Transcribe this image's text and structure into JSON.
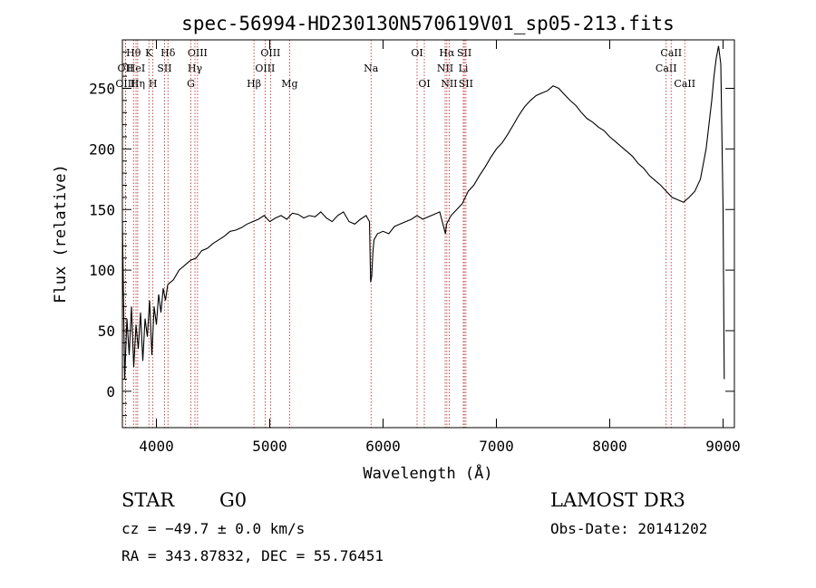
{
  "chart_data": {
    "type": "line",
    "title": "spec-56994-HD230130N570619V01_sp05-213.fits",
    "xlabel": "Wavelength (Å)",
    "ylabel": "Flux (relative)",
    "xlim": [
      3700,
      9100
    ],
    "ylim": [
      -30,
      290
    ],
    "x_ticks": [
      4000,
      5000,
      6000,
      7000,
      8000,
      9000
    ],
    "y_ticks": [
      0,
      50,
      100,
      150,
      200,
      250
    ],
    "line_color": "#000000",
    "marker_color": "#b22222",
    "series": [
      {
        "name": "flux",
        "x": [
          3700,
          3720,
          3740,
          3760,
          3780,
          3800,
          3820,
          3840,
          3860,
          3880,
          3900,
          3920,
          3940,
          3960,
          3980,
          4000,
          4020,
          4040,
          4060,
          4080,
          4100,
          4150,
          4200,
          4250,
          4300,
          4350,
          4400,
          4450,
          4500,
          4550,
          4600,
          4650,
          4700,
          4750,
          4800,
          4850,
          4900,
          4950,
          5000,
          5050,
          5100,
          5150,
          5200,
          5250,
          5300,
          5350,
          5400,
          5450,
          5500,
          5550,
          5600,
          5650,
          5700,
          5750,
          5800,
          5850,
          5880,
          5890,
          5900,
          5910,
          5920,
          5950,
          6000,
          6050,
          6100,
          6150,
          6200,
          6250,
          6300,
          6350,
          6400,
          6450,
          6500,
          6550,
          6560,
          6600,
          6650,
          6700,
          6750,
          6800,
          6850,
          6900,
          6950,
          7000,
          7050,
          7100,
          7150,
          7200,
          7250,
          7300,
          7350,
          7400,
          7450,
          7500,
          7550,
          7600,
          7650,
          7700,
          7750,
          7800,
          7850,
          7900,
          7950,
          8000,
          8050,
          8100,
          8150,
          8200,
          8250,
          8300,
          8350,
          8400,
          8450,
          8500,
          8550,
          8600,
          8650,
          8700,
          8750,
          8800,
          8850,
          8900,
          8920,
          8940,
          8960,
          8980,
          9000,
          9010
        ],
        "y": [
          140,
          10,
          60,
          30,
          70,
          20,
          55,
          35,
          65,
          25,
          60,
          45,
          75,
          30,
          70,
          55,
          80,
          65,
          85,
          75,
          88,
          92,
          100,
          104,
          108,
          110,
          116,
          118,
          122,
          125,
          128,
          132,
          133,
          135,
          138,
          140,
          142,
          145,
          140,
          143,
          145,
          142,
          147,
          146,
          143,
          145,
          144,
          148,
          143,
          140,
          145,
          148,
          140,
          138,
          142,
          145,
          140,
          90,
          95,
          115,
          125,
          130,
          132,
          130,
          136,
          138,
          140,
          142,
          145,
          142,
          144,
          146,
          148,
          130,
          138,
          145,
          150,
          155,
          165,
          170,
          178,
          185,
          193,
          200,
          205,
          212,
          220,
          228,
          235,
          240,
          244,
          246,
          248,
          252,
          250,
          245,
          240,
          236,
          230,
          225,
          222,
          218,
          215,
          210,
          206,
          202,
          198,
          194,
          188,
          184,
          178,
          174,
          170,
          165,
          160,
          158,
          156,
          160,
          165,
          175,
          200,
          240,
          260,
          275,
          285,
          270,
          150,
          10
        ]
      }
    ],
    "line_markers": [
      {
        "label": "Hθ",
        "x": 3798,
        "row": 1
      },
      {
        "label": "OII",
        "x": 3727,
        "row": 2
      },
      {
        "label": "OIII",
        "x": 3727,
        "row": 3
      },
      {
        "label": "HeI",
        "x": 3820,
        "row": 2
      },
      {
        "label": "Hη",
        "x": 3835,
        "row": 3
      },
      {
        "label": "K",
        "x": 3934,
        "row": 1
      },
      {
        "label": "H",
        "x": 3969,
        "row": 3
      },
      {
        "label": "SII",
        "x": 4072,
        "row": 2
      },
      {
        "label": "Hδ",
        "x": 4102,
        "row": 1
      },
      {
        "label": "OIII",
        "x": 4363,
        "row": 1
      },
      {
        "label": "Hγ",
        "x": 4340,
        "row": 2
      },
      {
        "label": "G",
        "x": 4304,
        "row": 3
      },
      {
        "label": "Hβ",
        "x": 4861,
        "row": 3
      },
      {
        "label": "OIII",
        "x": 4959,
        "row": 2
      },
      {
        "label": "OIII",
        "x": 5007,
        "row": 1
      },
      {
        "label": "Mg",
        "x": 5175,
        "row": 3
      },
      {
        "label": "Na",
        "x": 5894,
        "row": 2
      },
      {
        "label": "OI",
        "x": 6300,
        "row": 1
      },
      {
        "label": "OI",
        "x": 6364,
        "row": 3
      },
      {
        "label": "NII",
        "x": 6548,
        "row": 2
      },
      {
        "label": "Hα",
        "x": 6563,
        "row": 1
      },
      {
        "label": "NII",
        "x": 6583,
        "row": 3
      },
      {
        "label": "SII",
        "x": 6717,
        "row": 1
      },
      {
        "label": "Li",
        "x": 6708,
        "row": 2
      },
      {
        "label": "SII",
        "x": 6731,
        "row": 3
      },
      {
        "label": "CaII",
        "x": 8498,
        "row": 2
      },
      {
        "label": "CaII",
        "x": 8542,
        "row": 1
      },
      {
        "label": "CaII",
        "x": 8662,
        "row": 3
      }
    ]
  },
  "info": {
    "object_type": "STAR",
    "subclass": "G0",
    "survey": "LAMOST DR3",
    "cz": "cz = −49.7 ± 0.0 km/s",
    "obs_date": "Obs-Date: 20141202",
    "coords": "RA = 343.87832, DEC =  55.76451"
  }
}
